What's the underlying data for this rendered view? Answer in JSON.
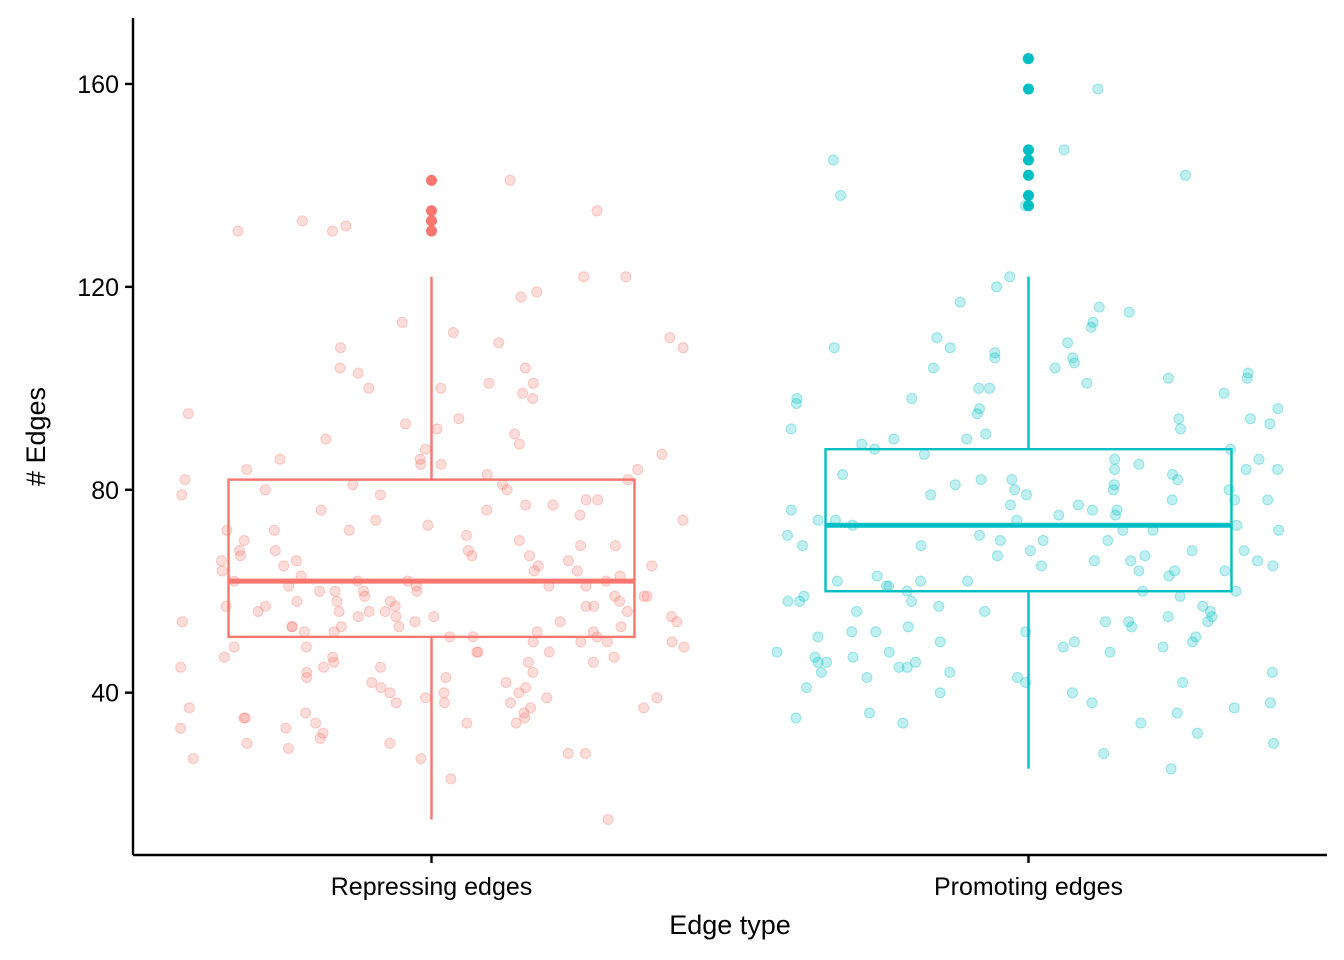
{
  "chart_data": {
    "type": "box",
    "title": "",
    "xlabel": "Edge type",
    "ylabel": "# Edges",
    "categories": [
      "Repressing edges",
      "Promoting edges"
    ],
    "ylim": [
      8,
      173
    ],
    "yticks": [
      40,
      80,
      120,
      160
    ],
    "grid": false,
    "legend": "none",
    "colors": {
      "Repressing edges": "#F8766D",
      "Promoting edges": "#00BFC4"
    },
    "series": [
      {
        "category": "Repressing edges",
        "q1": 51,
        "median": 62,
        "q3": 82,
        "whisker_low": 15,
        "whisker_high": 122,
        "outliers": [
          141,
          135,
          133,
          131
        ],
        "points": [
          141,
          131,
          109,
          108,
          99,
          89,
          80,
          122,
          119,
          78,
          77,
          72,
          69,
          68,
          67,
          66,
          65,
          64,
          63,
          62,
          62,
          61,
          61,
          60,
          60,
          59,
          59,
          58,
          58,
          57,
          57,
          57,
          56,
          56,
          56,
          55,
          55,
          54,
          54,
          53,
          53,
          53,
          52,
          52,
          51,
          50,
          50,
          49,
          48,
          47,
          46,
          45,
          44,
          43,
          42,
          41,
          40,
          39,
          38,
          37,
          36,
          35,
          34,
          33,
          32,
          31,
          30,
          29,
          28,
          27,
          23,
          15,
          101,
          98,
          95,
          94,
          93,
          92,
          91,
          90,
          88,
          87,
          86,
          85,
          84,
          83,
          82,
          81,
          80,
          79,
          78,
          77,
          76,
          75,
          74,
          73,
          72,
          71,
          70,
          69,
          68,
          67,
          66,
          65,
          64,
          63,
          62,
          61,
          60,
          59,
          58,
          57,
          56,
          55,
          54,
          53,
          52,
          51,
          50,
          49,
          48,
          47,
          46,
          45,
          44,
          43,
          42,
          41,
          40,
          39,
          38,
          37,
          36,
          35,
          34,
          33,
          118,
          113,
          108,
          104,
          103,
          100,
          133,
          132,
          131,
          111,
          110,
          101,
          100,
          135,
          122,
          104,
          86,
          85,
          84,
          82,
          81,
          79,
          76,
          74,
          72,
          70,
          68,
          67,
          66,
          65,
          64,
          62,
          61,
          60,
          59,
          58,
          57,
          56,
          55,
          54,
          53,
          52,
          51,
          50,
          49,
          48,
          47,
          46,
          45,
          40,
          39,
          38,
          37,
          35,
          34,
          30,
          28,
          27
        ]
      },
      {
        "category": "Promoting edges",
        "q1": 60,
        "median": 73,
        "q3": 88,
        "whisker_low": 25,
        "whisker_high": 122,
        "outliers": [
          165,
          159,
          147,
          145,
          142,
          138,
          136
        ],
        "points": [
          138,
          136,
          122,
          117,
          115,
          113,
          109,
          108,
          107,
          106,
          105,
          104,
          103,
          102,
          101,
          100,
          99,
          98,
          97,
          96,
          95,
          94,
          93,
          92,
          91,
          90,
          89,
          88,
          87,
          86,
          85,
          84,
          83,
          82,
          81,
          80,
          79,
          78,
          77,
          76,
          75,
          74,
          73,
          72,
          71,
          70,
          69,
          68,
          67,
          66,
          65,
          64,
          63,
          62,
          61,
          60,
          59,
          58,
          57,
          56,
          55,
          54,
          53,
          52,
          51,
          50,
          49,
          48,
          47,
          46,
          45,
          44,
          43,
          42,
          41,
          40,
          38,
          37,
          36,
          35,
          34,
          25,
          165,
          159,
          147,
          145,
          142,
          120,
          116,
          112,
          110,
          108,
          106,
          104,
          102,
          100,
          98,
          96,
          94,
          92,
          90,
          88,
          86,
          84,
          82,
          80,
          78,
          76,
          74,
          72,
          70,
          68,
          66,
          64,
          62,
          60,
          58,
          56,
          54,
          52,
          50,
          48,
          46,
          44,
          42,
          40,
          38,
          36,
          34,
          32,
          30,
          28,
          84,
          83,
          82,
          81,
          80,
          79,
          78,
          77,
          76,
          75,
          74,
          73,
          72,
          71,
          70,
          69,
          68,
          67,
          66,
          65,
          64,
          63,
          62,
          61,
          60,
          59,
          58,
          57,
          56,
          55,
          54,
          53,
          52,
          51,
          50,
          49,
          48,
          47,
          46,
          45,
          44,
          43
        ]
      }
    ]
  }
}
